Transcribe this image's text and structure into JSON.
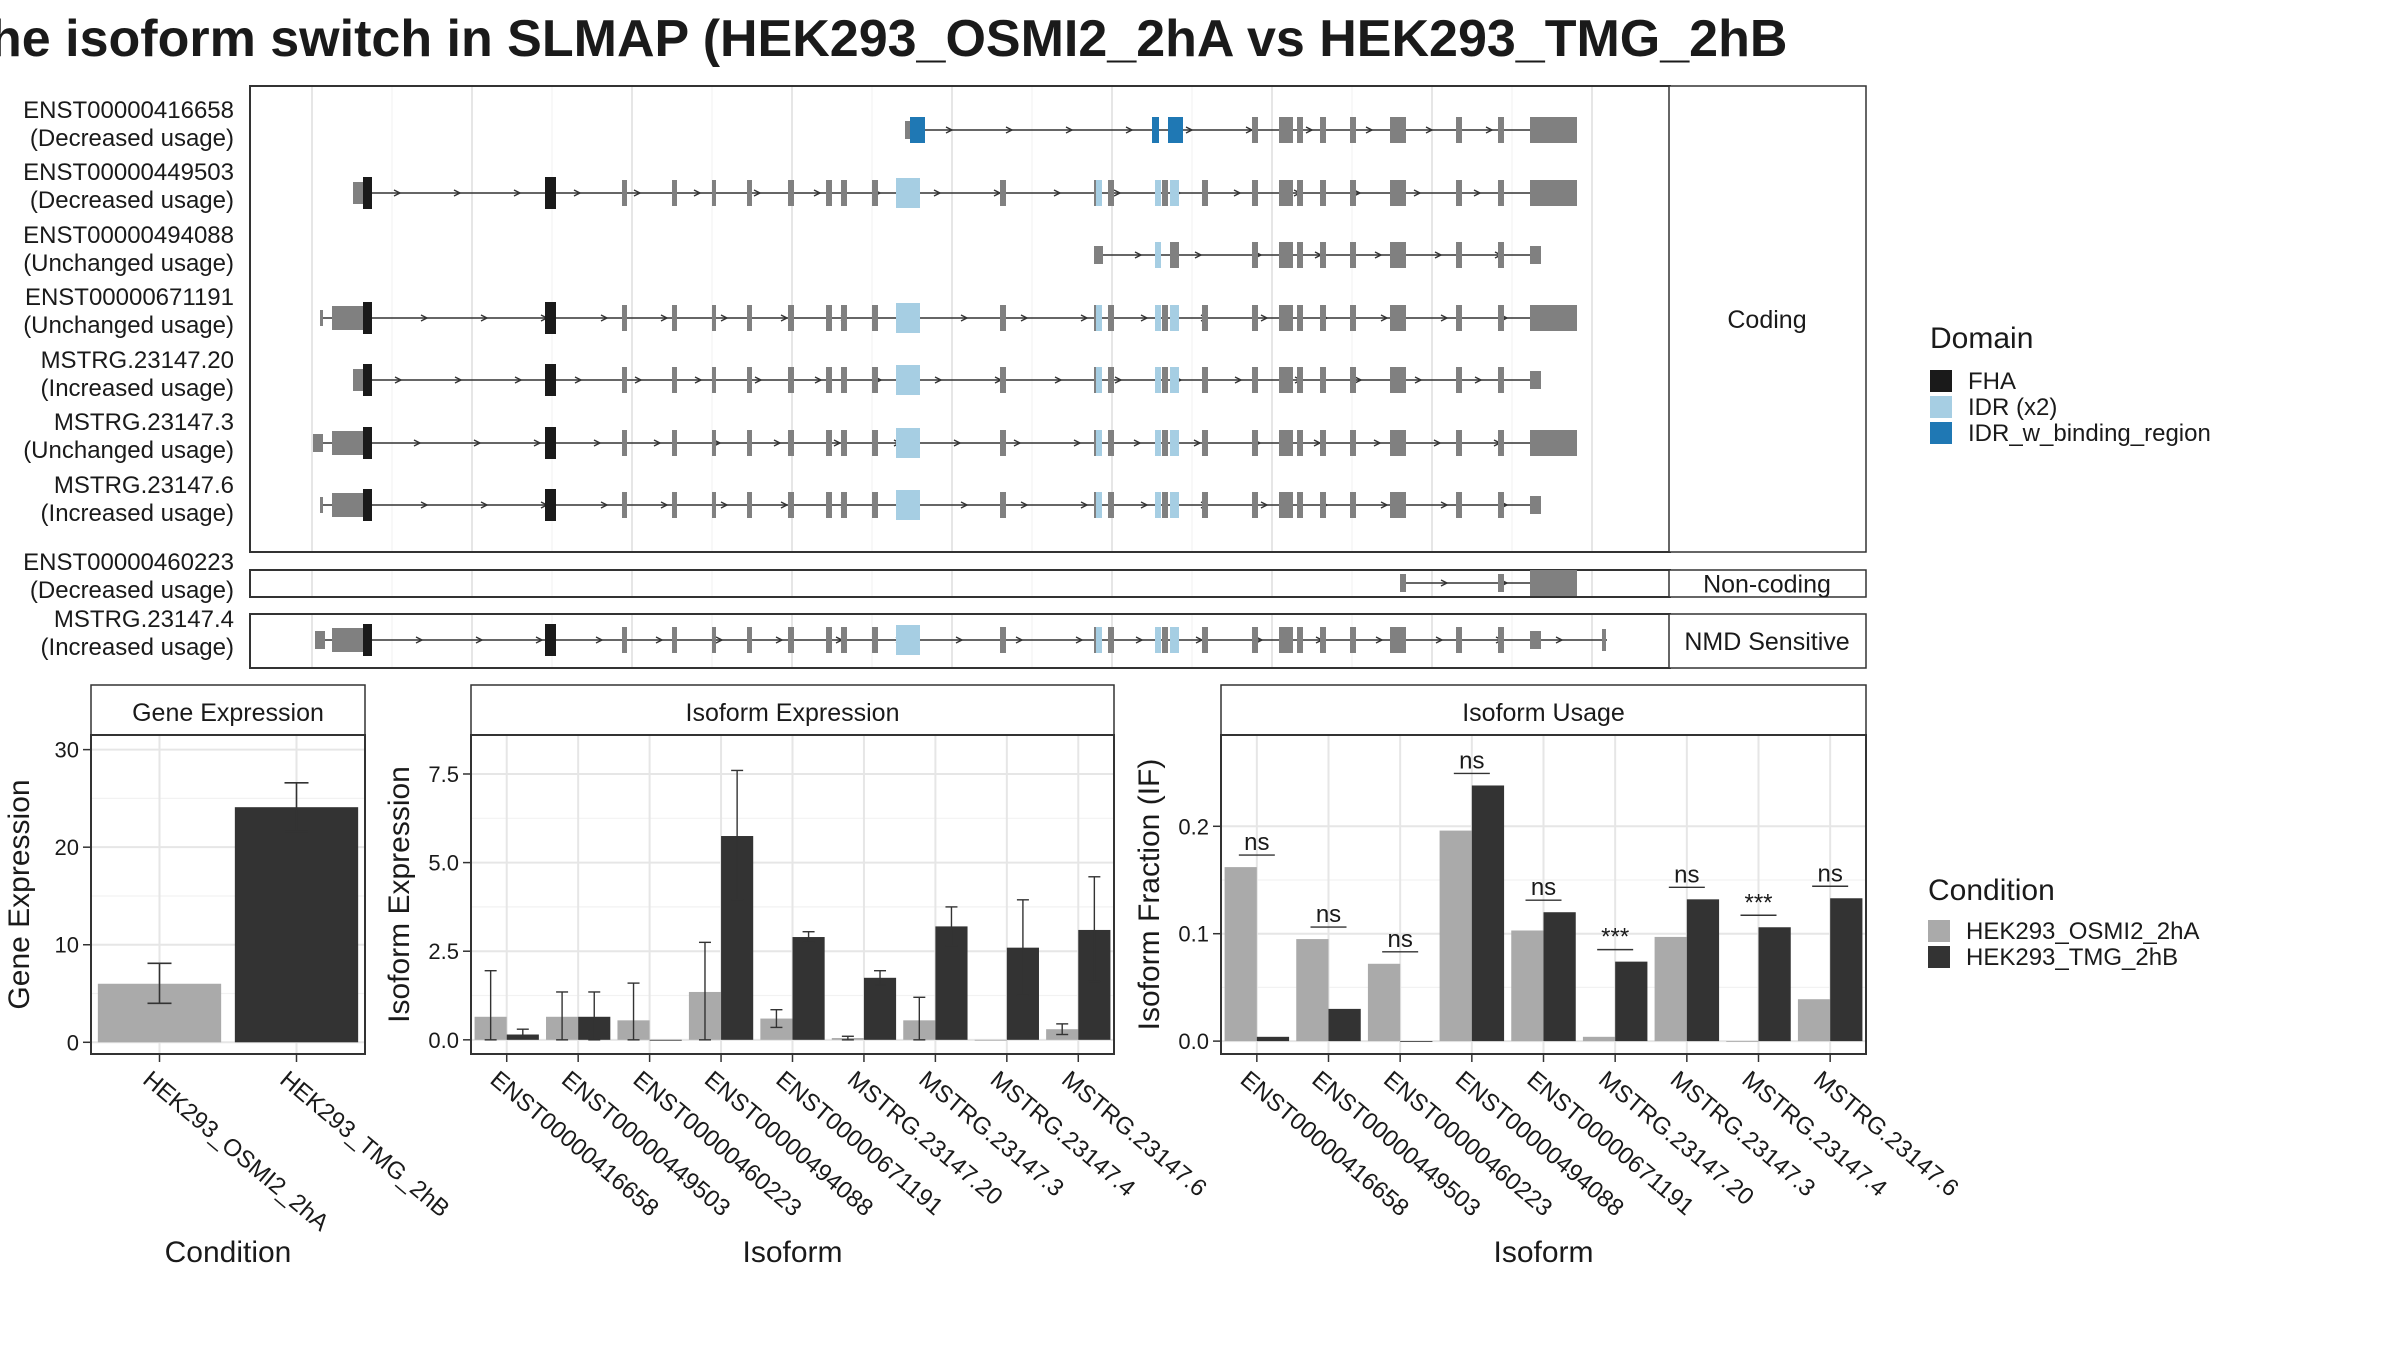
{
  "title": "he isoform switch in SLMAP (HEK293_OSMI2_2hA vs HEK293_TMG_2hB",
  "colors": {
    "exon": "#808080",
    "FHA": "#1a1a1a",
    "IDR": "#a6cee3",
    "IDR_w_binding_region": "#1f78b4",
    "cond_a": "#aaaaaa",
    "cond_b": "#333333"
  },
  "structure": {
    "facets": [
      "Coding",
      "Non-coding",
      "NMD Sensitive"
    ],
    "transcripts": [
      {
        "id": "ENST00000416658",
        "usage": "(Decreased usage)",
        "group": "Coding"
      },
      {
        "id": "ENST00000449503",
        "usage": "(Decreased usage)",
        "group": "Coding"
      },
      {
        "id": "ENST00000494088",
        "usage": "(Unchanged usage)",
        "group": "Coding"
      },
      {
        "id": "ENST00000671191",
        "usage": "(Unchanged usage)",
        "group": "Coding"
      },
      {
        "id": "MSTRG.23147.20",
        "usage": "(Increased usage)",
        "group": "Coding"
      },
      {
        "id": "MSTRG.23147.3",
        "usage": "(Unchanged usage)",
        "group": "Coding"
      },
      {
        "id": "MSTRG.23147.6",
        "usage": "(Increased usage)",
        "group": "Coding"
      },
      {
        "id": "ENST00000460223",
        "usage": "(Decreased usage)",
        "group": "Non-coding"
      },
      {
        "id": "MSTRG.23147.4",
        "usage": "(Increased usage)",
        "group": "NMD Sensitive"
      }
    ]
  },
  "domain_legend": {
    "title": "Domain",
    "items": [
      {
        "label": "FHA",
        "color": "#1a1a1a"
      },
      {
        "label": "IDR (x2)",
        "color": "#a6cee3"
      },
      {
        "label": "IDR_w_binding_region",
        "color": "#1f78b4"
      }
    ]
  },
  "condition_legend": {
    "title": "Condition",
    "items": [
      {
        "label": "HEK293_OSMI2_2hA",
        "color": "#aaaaaa"
      },
      {
        "label": "HEK293_TMG_2hB",
        "color": "#333333"
      }
    ]
  },
  "chart_data": [
    {
      "type": "bar",
      "title": "Gene Expression",
      "xlabel": "Condition",
      "ylabel": "Gene Expression",
      "categories": [
        "HEK293_OSMI2_2hA",
        "HEK293_TMG_2hB"
      ],
      "values": [
        6.0,
        24.1
      ],
      "err_low": [
        4.0,
        21.6
      ],
      "err_high": [
        8.1,
        26.6
      ],
      "ylim": [
        -1.2,
        31.5
      ],
      "yticks": [
        0,
        10,
        20,
        30
      ]
    },
    {
      "type": "bar",
      "title": "Isoform Expression",
      "xlabel": "Isoform",
      "ylabel": "Isoform Expression",
      "categories": [
        "ENST00000416658",
        "ENST00000449503",
        "ENST00000460223",
        "ENST00000494088",
        "ENST00000671191",
        "MSTRG.23147.20",
        "MSTRG.23147.3",
        "MSTRG.23147.4",
        "MSTRG.23147.6"
      ],
      "series": [
        {
          "name": "HEK293_OSMI2_2hA",
          "values": [
            0.65,
            0.65,
            0.55,
            1.35,
            0.6,
            0.05,
            0.55,
            0.0,
            0.3
          ],
          "err_low": [
            0.0,
            0.0,
            0.0,
            0.0,
            0.35,
            0.0,
            0.0,
            0.0,
            0.15
          ],
          "err_high": [
            1.95,
            1.35,
            1.6,
            2.75,
            0.85,
            0.1,
            1.2,
            0.0,
            0.45
          ]
        },
        {
          "name": "HEK293_TMG_2hB",
          "values": [
            0.15,
            0.65,
            0.0,
            5.75,
            2.9,
            1.75,
            3.2,
            2.6,
            3.1
          ],
          "err_low": [
            0.05,
            0.0,
            0.0,
            3.95,
            2.75,
            1.55,
            2.65,
            1.25,
            1.65
          ],
          "err_high": [
            0.3,
            1.35,
            0.0,
            7.6,
            3.05,
            1.95,
            3.75,
            3.95,
            4.6
          ]
        }
      ],
      "ylim": [
        -0.4,
        8.6
      ],
      "yticks": [
        0.0,
        2.5,
        5.0,
        7.5
      ]
    },
    {
      "type": "bar",
      "title": "Isoform Usage",
      "xlabel": "Isoform",
      "ylabel": "Isoform Fraction (IF)",
      "categories": [
        "ENST00000416658",
        "ENST00000449503",
        "ENST00000460223",
        "ENST00000494088",
        "ENST00000671191",
        "MSTRG.23147.20",
        "MSTRG.23147.3",
        "MSTRG.23147.4",
        "MSTRG.23147.6"
      ],
      "series": [
        {
          "name": "HEK293_OSMI2_2hA",
          "values": [
            0.162,
            0.095,
            0.072,
            0.196,
            0.103,
            0.004,
            0.097,
            0.0,
            0.039
          ]
        },
        {
          "name": "HEK293_TMG_2hB",
          "values": [
            0.004,
            0.03,
            0.0,
            0.238,
            0.12,
            0.074,
            0.132,
            0.106,
            0.133
          ]
        }
      ],
      "significance": [
        "ns",
        "ns",
        "ns",
        "ns",
        "ns",
        "***",
        "ns",
        "***",
        "ns"
      ],
      "ylim": [
        -0.012,
        0.285
      ],
      "yticks": [
        0.0,
        0.1,
        0.2
      ]
    }
  ]
}
